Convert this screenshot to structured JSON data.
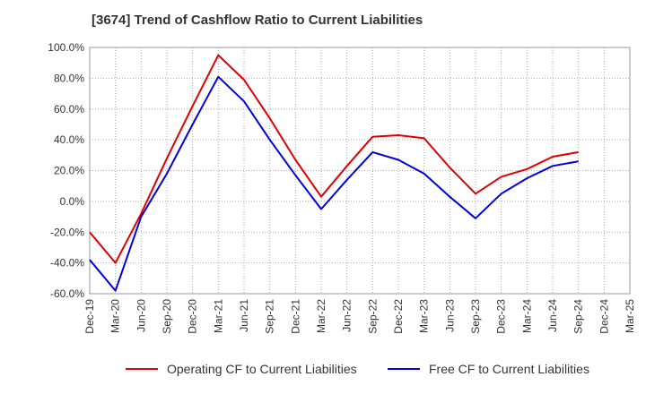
{
  "title": "[3674]  Trend of Cashflow Ratio to Current Liabilities",
  "chart_data": {
    "type": "line",
    "title": "[3674]  Trend of Cashflow Ratio to Current Liabilities",
    "xlabel": "",
    "ylabel": "",
    "x": [
      "Dec-19",
      "Mar-20",
      "Jun-20",
      "Sep-20",
      "Dec-20",
      "Mar-21",
      "Jun-21",
      "Sep-21",
      "Dec-21",
      "Mar-22",
      "Jun-22",
      "Sep-22",
      "Dec-22",
      "Mar-23",
      "Jun-23",
      "Sep-23",
      "Dec-23",
      "Mar-24",
      "Jun-24",
      "Sep-24",
      "Dec-24",
      "Mar-25"
    ],
    "ylim": [
      -60,
      100
    ],
    "yticks": [
      -60,
      -40,
      -20,
      0,
      20,
      40,
      60,
      80,
      100
    ],
    "ytick_labels": [
      "-60.0%",
      "-40.0%",
      "-20.0%",
      "0.0%",
      "20.0%",
      "40.0%",
      "60.0%",
      "80.0%",
      "100.0%"
    ],
    "grid": true,
    "legend_position": "bottom",
    "series": [
      {
        "name": "Operating CF to Current Liabilities",
        "color": "#e00000",
        "values": [
          -20,
          -40,
          -8,
          28,
          62,
          95,
          79,
          54,
          27,
          3,
          23,
          42,
          43,
          41,
          22,
          5,
          16,
          21,
          29,
          32,
          null,
          null
        ]
      },
      {
        "name": "Free CF to Current Liabilities",
        "color": "#0000dd",
        "values": [
          -38,
          -58,
          -10,
          18,
          50,
          81,
          65,
          40,
          17,
          -5,
          14,
          32,
          27,
          18,
          3,
          -11,
          5,
          15,
          23,
          26,
          null,
          null
        ]
      }
    ]
  }
}
